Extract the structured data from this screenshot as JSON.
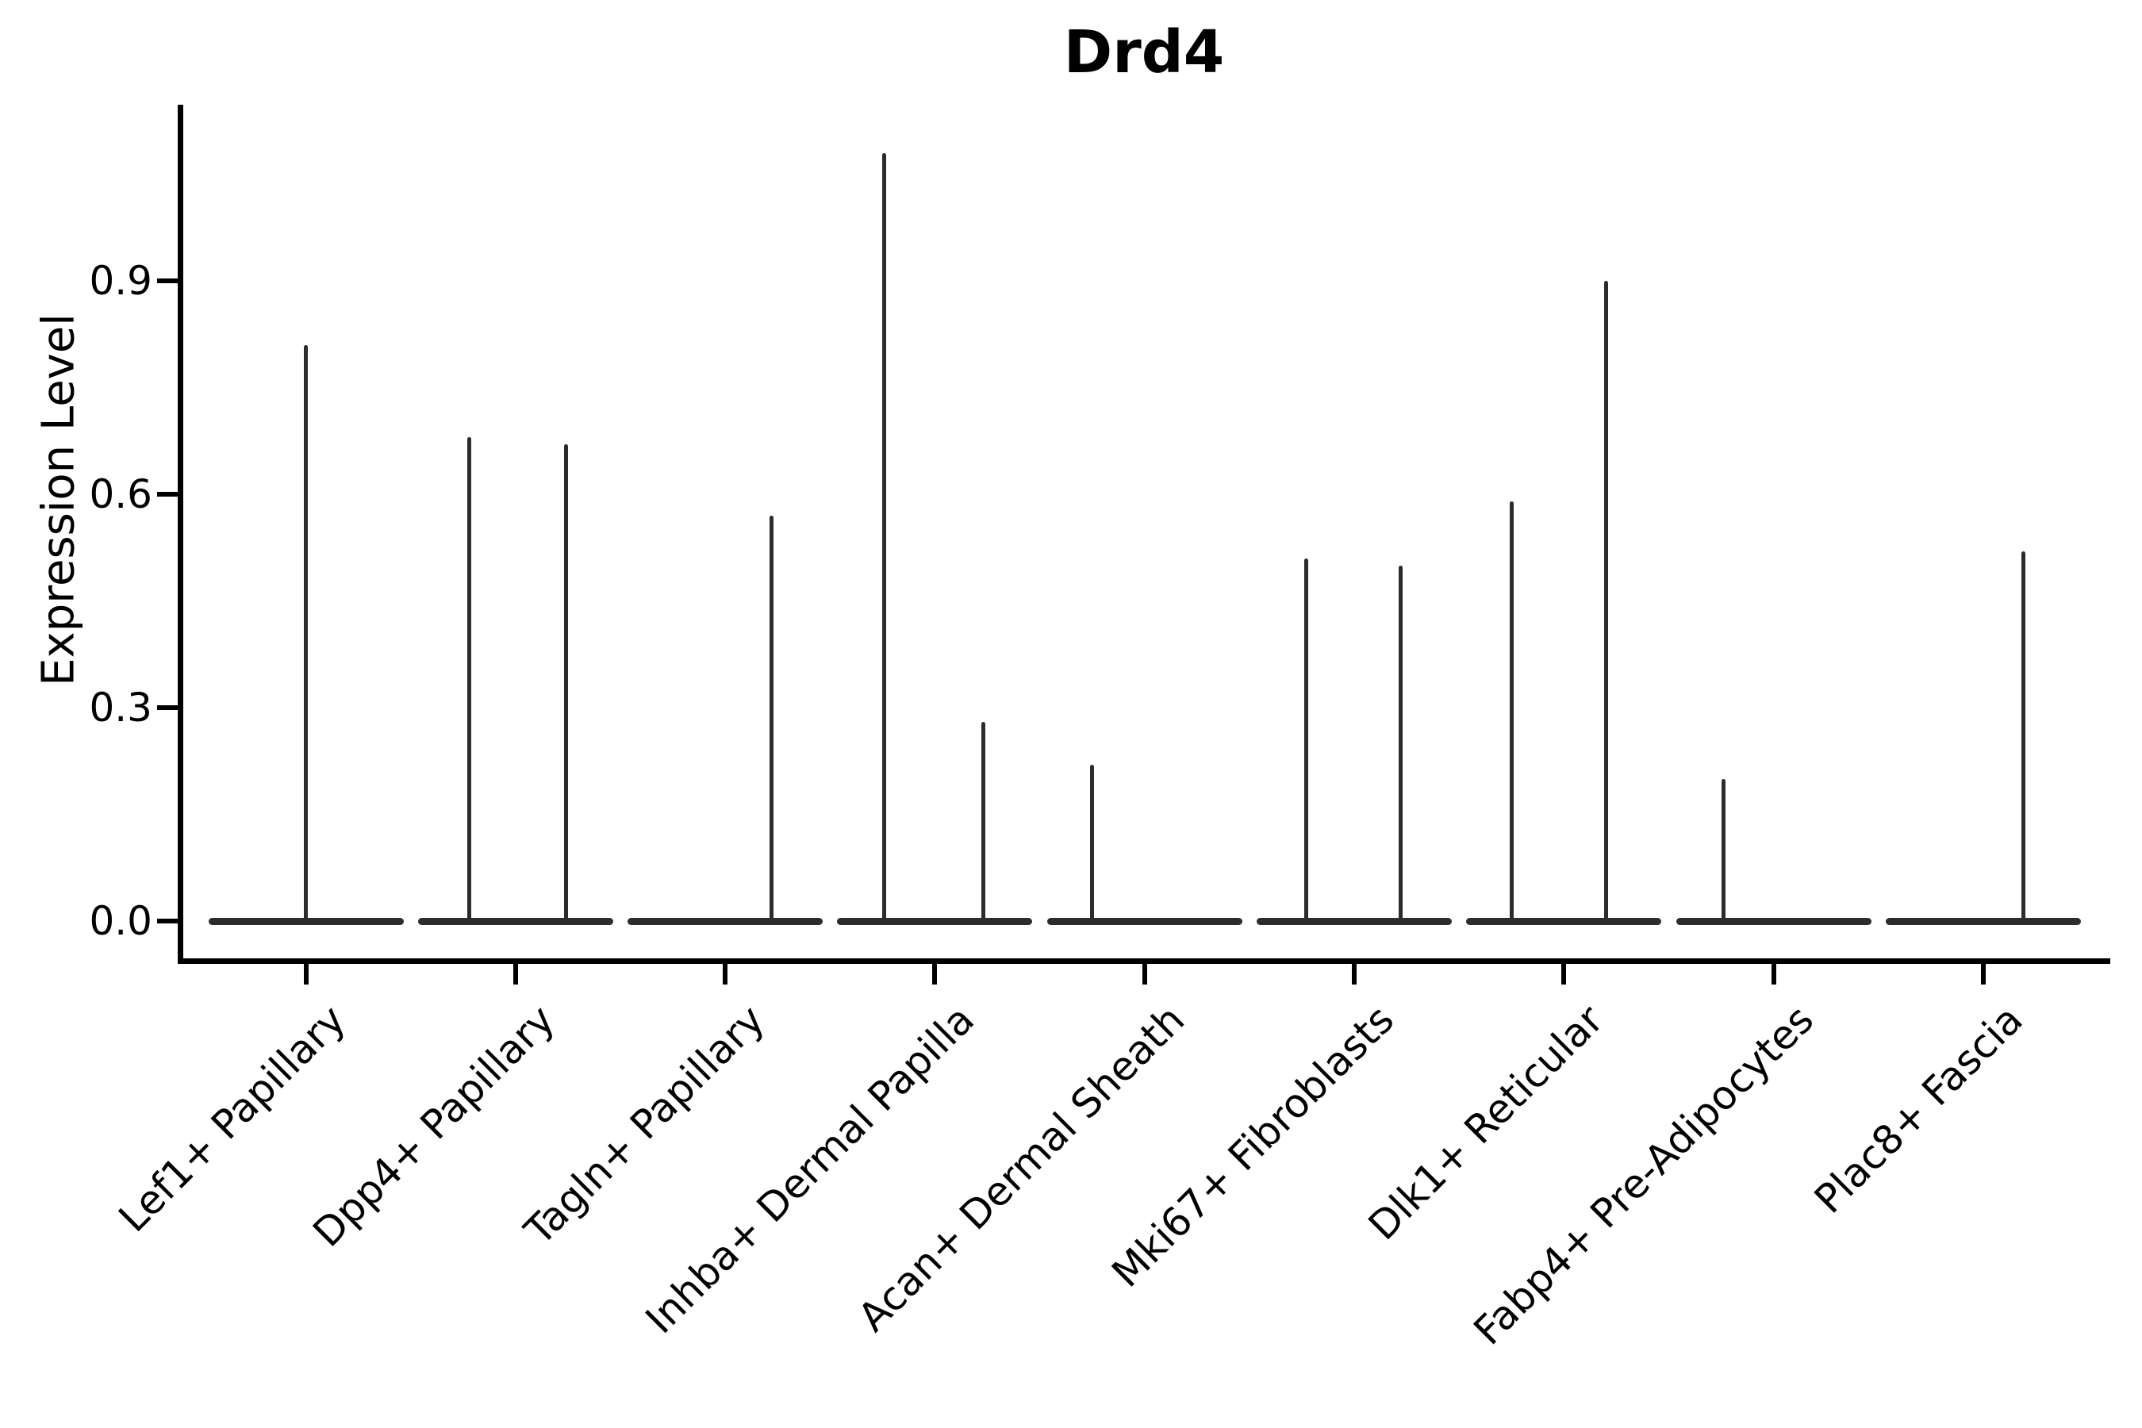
{
  "title": "Drd4",
  "y_axis": {
    "label": "Expression Level",
    "tick_labels": [
      "0.0",
      "0.3",
      "0.6",
      "0.9"
    ]
  },
  "chart_data": {
    "type": "violin",
    "title": "Drd4",
    "xlabel": "",
    "ylabel": "Expression Level",
    "ylim": [
      -0.06,
      1.15
    ],
    "yticks": [
      0.0,
      0.3,
      0.6,
      0.9
    ],
    "ytick_labels": [
      "0.0",
      "0.3",
      "0.6",
      "0.9"
    ],
    "grid": false,
    "legend": "none",
    "background_color": "#ffffff",
    "axis_color": "#000000",
    "violin_color": "#2c2c2c",
    "categories": [
      "Lef1+ Papillary",
      "Dpp4+ Papillary",
      "Tagln+ Papillary",
      "Inhba+ Dermal Papilla",
      "Acan+ Dermal Sheath",
      "Mki67+ Fibroblasts",
      "Dlk1+ Reticular",
      "Fabp4+ Pre-Adipocytes",
      "Plac8+ Fascia"
    ],
    "violins": [
      {
        "category": "Lef1+ Papillary",
        "base_value": 0.0,
        "spikes": [
          {
            "offset": 0.0,
            "max_value": 0.81
          }
        ]
      },
      {
        "category": "Dpp4+ Papillary",
        "base_value": 0.0,
        "spikes": [
          {
            "offset": -0.22,
            "max_value": 0.68
          },
          {
            "offset": 0.24,
            "max_value": 0.67
          }
        ]
      },
      {
        "category": "Tagln+ Papillary",
        "base_value": 0.0,
        "spikes": [
          {
            "offset": 0.22,
            "max_value": 0.57
          }
        ]
      },
      {
        "category": "Inhba+ Dermal Papilla",
        "base_value": 0.0,
        "spikes": [
          {
            "offset": -0.24,
            "max_value": 1.08
          },
          {
            "offset": 0.23,
            "max_value": 0.28
          }
        ]
      },
      {
        "category": "Acan+ Dermal Sheath",
        "base_value": 0.0,
        "spikes": [
          {
            "offset": -0.25,
            "max_value": 0.22
          }
        ]
      },
      {
        "category": "Mki67+ Fibroblasts",
        "base_value": 0.0,
        "spikes": [
          {
            "offset": -0.23,
            "max_value": 0.51
          },
          {
            "offset": 0.22,
            "max_value": 0.5
          }
        ]
      },
      {
        "category": "Dlk1+ Reticular",
        "base_value": 0.0,
        "spikes": [
          {
            "offset": -0.25,
            "max_value": 0.59
          },
          {
            "offset": 0.2,
            "max_value": 0.9
          }
        ]
      },
      {
        "category": "Fabp4+ Pre-Adipocytes",
        "base_value": 0.0,
        "spikes": [
          {
            "offset": -0.24,
            "max_value": 0.2
          }
        ]
      },
      {
        "category": "Plac8+ Fascia",
        "base_value": 0.0,
        "spikes": [
          {
            "offset": 0.19,
            "max_value": 0.52
          }
        ]
      }
    ]
  }
}
